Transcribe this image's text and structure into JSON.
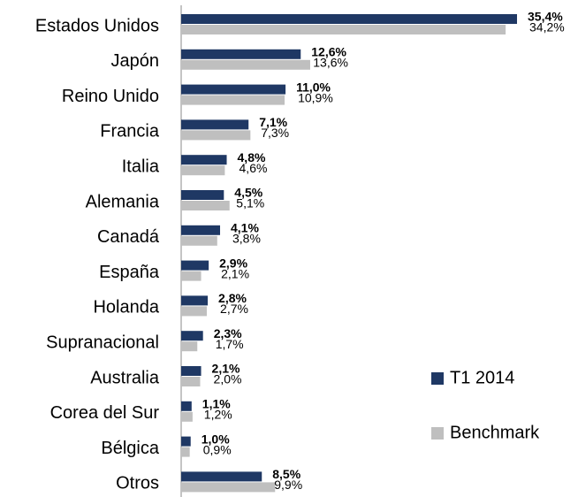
{
  "chart_data": {
    "type": "bar",
    "orientation": "horizontal",
    "categories": [
      "Estados Unidos",
      "Japón",
      "Reino Unido",
      "Francia",
      "Italia",
      "Alemania",
      "Canadá",
      "España",
      "Holanda",
      "Supranacional",
      "Australia",
      "Corea del Sur",
      "Bélgica",
      "Otros"
    ],
    "series": [
      {
        "name": "T1 2014",
        "color": "#1f3864",
        "values": [
          35.4,
          12.6,
          11.0,
          7.1,
          4.8,
          4.5,
          4.1,
          2.9,
          2.8,
          2.3,
          2.1,
          1.1,
          1.0,
          8.5
        ],
        "value_labels": [
          "35,4%",
          "12,6%",
          "11,0%",
          "7,1%",
          "4,8%",
          "4,5%",
          "4,1%",
          "2,9%",
          "2,8%",
          "2,3%",
          "2,1%",
          "1,1%",
          "1,0%",
          "8,5%"
        ]
      },
      {
        "name": "Benchmark",
        "color": "#bfbfbf",
        "values": [
          34.2,
          13.6,
          10.9,
          7.3,
          4.6,
          5.1,
          3.8,
          2.1,
          2.7,
          1.7,
          2.0,
          1.2,
          0.9,
          9.9
        ],
        "value_labels": [
          "34,2%",
          "13,6%",
          "10,9%",
          "7,3%",
          "4,6%",
          "5,1%",
          "3,8%",
          "2,1%",
          "2,7%",
          "1,7%",
          "2,0%",
          "1,2%",
          "0,9%",
          "9,9%"
        ]
      }
    ],
    "legend": "right"
  }
}
